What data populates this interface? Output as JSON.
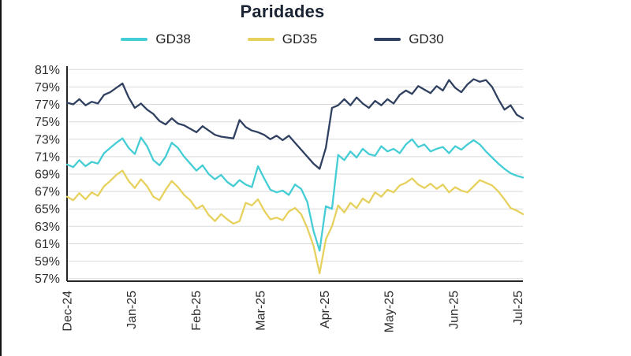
{
  "chart_data": {
    "type": "line",
    "title": "Paridades",
    "xlabel": "",
    "ylabel": "",
    "ylim": [
      56.7,
      81.3
    ],
    "yticks": [
      57,
      59,
      61,
      63,
      65,
      67,
      69,
      71,
      73,
      75,
      77,
      79,
      81
    ],
    "y_tick_suffix": "%",
    "grid": "horizontal",
    "legend_position": "top",
    "grid_color": "#d9d9d9",
    "axis_color": "#262626",
    "tick_color": "#2e2e2e",
    "x_month_span": 7.08,
    "x_ticks": [
      {
        "label": "Dec-24",
        "month": 0
      },
      {
        "label": "Jan-25",
        "month": 1
      },
      {
        "label": "Feb-25",
        "month": 2
      },
      {
        "label": "Mar-25",
        "month": 3
      },
      {
        "label": "Apr-25",
        "month": 4
      },
      {
        "label": "May-25",
        "month": 5
      },
      {
        "label": "Jun-25",
        "month": 6
      },
      {
        "label": "Jul-25",
        "month": 7
      }
    ],
    "series": [
      {
        "name": "GD38",
        "color": "#44cdd5",
        "values": [
          70.1,
          69.8,
          70.6,
          69.9,
          70.4,
          70.2,
          71.4,
          72.0,
          72.6,
          73.1,
          72.0,
          71.3,
          73.2,
          72.2,
          70.6,
          70.0,
          71.0,
          72.6,
          72.0,
          71.0,
          70.2,
          69.4,
          70.0,
          69.0,
          68.4,
          68.9,
          68.1,
          67.6,
          68.3,
          67.8,
          67.5,
          69.9,
          68.5,
          67.2,
          66.9,
          67.1,
          66.6,
          67.8,
          67.3,
          65.8,
          62.5,
          60.2,
          65.3,
          65.0,
          71.2,
          70.6,
          71.6,
          70.9,
          71.9,
          71.3,
          71.1,
          72.2,
          71.6,
          71.9,
          71.4,
          72.4,
          73.0,
          72.1,
          72.4,
          71.6,
          71.9,
          72.1,
          71.4,
          72.2,
          71.8,
          72.4,
          72.9,
          72.4,
          71.6,
          70.9,
          70.2,
          69.6,
          69.1,
          68.8,
          68.6
        ]
      },
      {
        "name": "GD35",
        "color": "#e7d15e",
        "values": [
          66.4,
          66.0,
          66.8,
          66.1,
          66.9,
          66.5,
          67.6,
          68.2,
          68.9,
          69.4,
          68.2,
          67.4,
          68.4,
          67.6,
          66.4,
          66.0,
          67.2,
          68.2,
          67.5,
          66.6,
          66.0,
          65.0,
          65.4,
          64.3,
          63.6,
          64.4,
          63.8,
          63.3,
          63.6,
          65.7,
          65.4,
          66.1,
          64.8,
          63.8,
          64.0,
          63.7,
          64.7,
          65.1,
          64.4,
          62.8,
          60.8,
          57.6,
          61.5,
          63.0,
          65.4,
          64.6,
          65.7,
          65.1,
          66.2,
          65.7,
          66.9,
          66.4,
          67.2,
          66.9,
          67.7,
          68.0,
          68.5,
          67.8,
          67.4,
          67.9,
          67.3,
          67.8,
          66.9,
          67.5,
          67.1,
          66.9,
          67.6,
          68.3,
          68.0,
          67.7,
          67.0,
          66.1,
          65.1,
          64.8,
          64.4
        ]
      },
      {
        "name": "GD30",
        "color": "#2f4060",
        "values": [
          77.2,
          77.0,
          77.6,
          76.9,
          77.3,
          77.1,
          78.1,
          78.4,
          78.9,
          79.4,
          77.8,
          76.6,
          77.1,
          76.4,
          75.9,
          75.1,
          74.7,
          75.4,
          74.8,
          74.6,
          74.2,
          73.8,
          74.5,
          74.0,
          73.5,
          73.3,
          73.2,
          73.1,
          75.2,
          74.4,
          74.0,
          73.8,
          73.5,
          73.0,
          73.4,
          72.9,
          73.4,
          72.6,
          71.8,
          71.0,
          70.2,
          69.6,
          72.0,
          76.6,
          76.9,
          77.6,
          76.9,
          77.8,
          77.1,
          76.6,
          77.4,
          76.9,
          77.6,
          77.1,
          78.1,
          78.6,
          78.2,
          79.1,
          78.7,
          78.3,
          79.1,
          78.6,
          79.8,
          78.9,
          78.4,
          79.3,
          79.9,
          79.6,
          79.8,
          79.0,
          77.6,
          76.4,
          76.9,
          75.8,
          75.4
        ]
      }
    ]
  }
}
